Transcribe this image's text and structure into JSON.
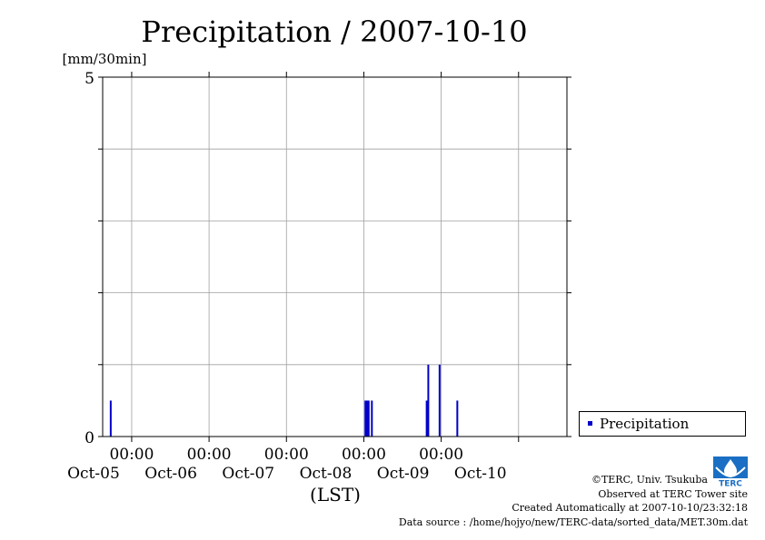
{
  "chart_data": {
    "type": "bar",
    "title": "Precipitation / 2007-10-10",
    "ylabel": "[mm/30min]",
    "xlabel": "(LST)",
    "ylim": [
      0,
      5
    ],
    "xlim": [
      "2007-10-04 15:00",
      "2007-10-10 15:00"
    ],
    "y_ticks": [
      "0",
      "5"
    ],
    "x_ticks": [
      {
        "time": "2007-10-05 00:00",
        "label": "00:00",
        "date": "Oct-05"
      },
      {
        "time": "2007-10-06 00:00",
        "label": "00:00",
        "date": "Oct-06"
      },
      {
        "time": "2007-10-07 00:00",
        "label": "00:00",
        "date": "Oct-07"
      },
      {
        "time": "2007-10-08 00:00",
        "label": "00:00",
        "date": "Oct-08"
      },
      {
        "time": "2007-10-09 00:00",
        "label": "00:00",
        "date": "Oct-09"
      },
      {
        "time": "2007-10-10 00:00",
        "label": "",
        "date": "Oct-10"
      }
    ],
    "grid": true,
    "legend_position": "right",
    "series": [
      {
        "name": "Precipitation",
        "color": "#0000c8",
        "points": [
          {
            "time": "2007-10-04 17:30",
            "value": 0.5
          },
          {
            "time": "2007-10-08 00:30",
            "value": 0.5
          },
          {
            "time": "2007-10-08 01:00",
            "value": 0.5
          },
          {
            "time": "2007-10-08 01:30",
            "value": 0.5
          },
          {
            "time": "2007-10-08 02:30",
            "value": 0.5
          },
          {
            "time": "2007-10-08 19:30",
            "value": 0.5
          },
          {
            "time": "2007-10-08 20:00",
            "value": 1.0
          },
          {
            "time": "2007-10-08 23:30",
            "value": 1.0
          },
          {
            "time": "2007-10-09 05:00",
            "value": 0.5
          }
        ]
      }
    ]
  },
  "legend": {
    "label": "Precipitation"
  },
  "credits": {
    "copyright": "©TERC, Univ. Tsukuba",
    "site": "Observed at TERC Tower site",
    "created": "Created Automatically at 2007-10-10/23:32:18",
    "source": "Data source : /home/hojyo/new/TERC-data/sorted_data/MET.30m.dat"
  },
  "logo": {
    "text": "TERC"
  }
}
